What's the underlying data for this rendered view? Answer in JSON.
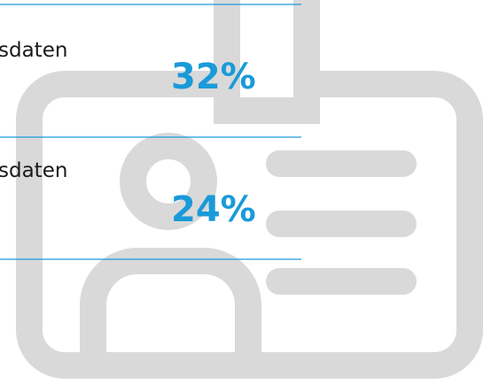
{
  "items": [
    {
      "label": "sdaten",
      "value": "32%"
    },
    {
      "label": "sdaten",
      "value": "24%"
    }
  ]
}
